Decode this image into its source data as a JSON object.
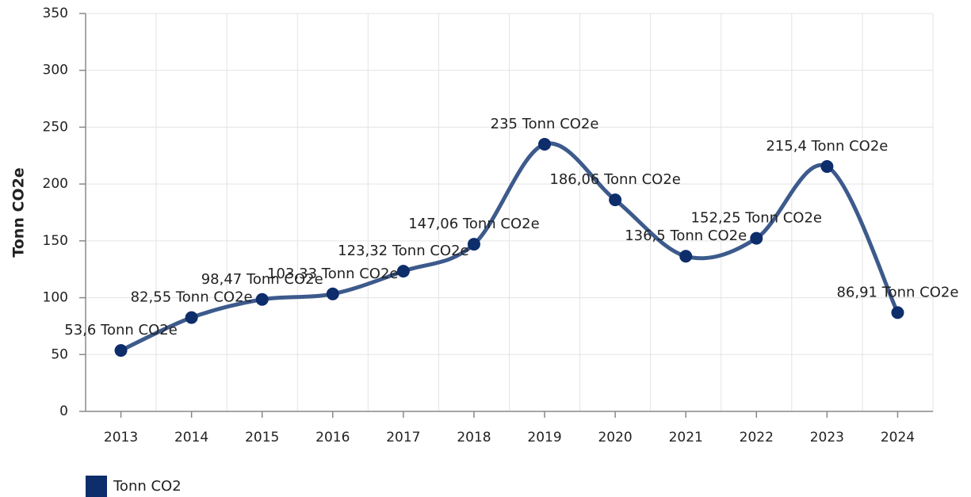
{
  "chart_data": {
    "type": "line",
    "y_label": "Tonn CO2e",
    "categories": [
      "2013",
      "2014",
      "2015",
      "2016",
      "2017",
      "2018",
      "2019",
      "2020",
      "2021",
      "2022",
      "2023",
      "2024"
    ],
    "series": [
      {
        "name": "Tonn CO2",
        "color": "#3d5a8c",
        "marker_color": "#0d2d6b",
        "values": [
          53.6,
          82.55,
          98.47,
          103.33,
          123.32,
          147.06,
          235,
          186.06,
          136.5,
          152.25,
          215.4,
          86.91
        ],
        "value_labels": [
          "53,6 Tonn CO2e",
          "82,55 Tonn CO2e",
          "98,47 Tonn CO2e",
          "103,33 Tonn CO2e",
          "123,32 Tonn CO2e",
          "147,06 Tonn CO2e",
          "235 Tonn CO2e",
          "186,06 Tonn CO2e",
          "136,5 Tonn CO2e",
          "152,25 Tonn CO2e",
          "215,4 Tonn CO2e",
          "86,91 Tonn CO2e"
        ]
      }
    ],
    "ylim": [
      0,
      350
    ],
    "yticks": [
      0,
      50,
      100,
      150,
      200,
      250,
      300,
      350
    ],
    "grid": true,
    "legend": "bottom-left"
  }
}
